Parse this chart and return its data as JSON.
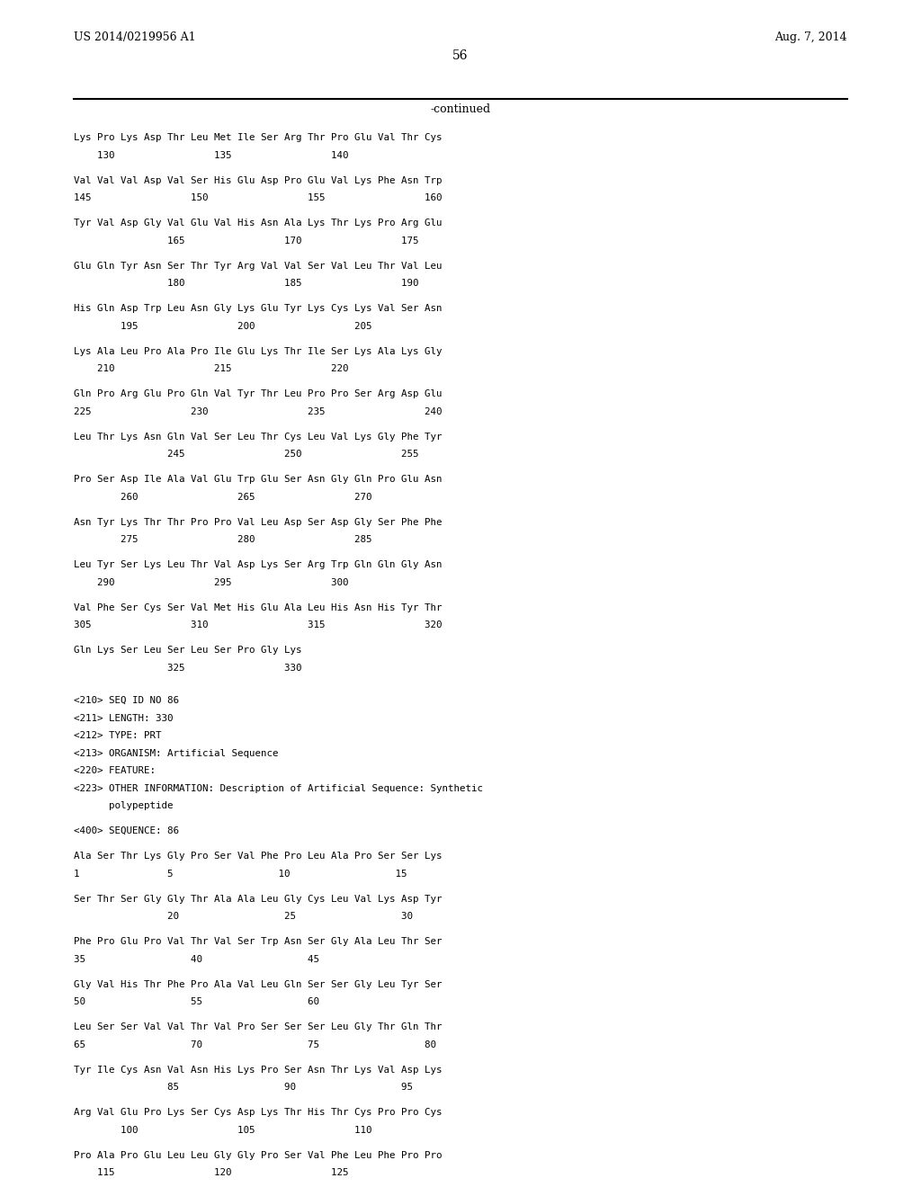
{
  "header_left": "US 2014/0219956 A1",
  "header_right": "Aug. 7, 2014",
  "page_number": "56",
  "continued_label": "-continued",
  "background_color": "#ffffff",
  "text_color": "#000000",
  "lines": [
    "Lys Pro Lys Asp Thr Leu Met Ile Ser Arg Thr Pro Glu Val Thr Cys",
    "    130                 135                 140",
    "",
    "Val Val Val Asp Val Ser His Glu Asp Pro Glu Val Lys Phe Asn Trp",
    "145                 150                 155                 160",
    "",
    "Tyr Val Asp Gly Val Glu Val His Asn Ala Lys Thr Lys Pro Arg Glu",
    "                165                 170                 175",
    "",
    "Glu Gln Tyr Asn Ser Thr Tyr Arg Val Val Ser Val Leu Thr Val Leu",
    "                180                 185                 190",
    "",
    "His Gln Asp Trp Leu Asn Gly Lys Glu Tyr Lys Cys Lys Val Ser Asn",
    "        195                 200                 205",
    "",
    "Lys Ala Leu Pro Ala Pro Ile Glu Lys Thr Ile Ser Lys Ala Lys Gly",
    "    210                 215                 220",
    "",
    "Gln Pro Arg Glu Pro Gln Val Tyr Thr Leu Pro Pro Ser Arg Asp Glu",
    "225                 230                 235                 240",
    "",
    "Leu Thr Lys Asn Gln Val Ser Leu Thr Cys Leu Val Lys Gly Phe Tyr",
    "                245                 250                 255",
    "",
    "Pro Ser Asp Ile Ala Val Glu Trp Glu Ser Asn Gly Gln Pro Glu Asn",
    "        260                 265                 270",
    "",
    "Asn Tyr Lys Thr Thr Pro Pro Val Leu Asp Ser Asp Gly Ser Phe Phe",
    "        275                 280                 285",
    "",
    "Leu Tyr Ser Lys Leu Thr Val Asp Lys Ser Arg Trp Gln Gln Gly Asn",
    "    290                 295                 300",
    "",
    "Val Phe Ser Cys Ser Val Met His Glu Ala Leu His Asn His Tyr Thr",
    "305                 310                 315                 320",
    "",
    "Gln Lys Ser Leu Ser Leu Ser Pro Gly Lys",
    "                325                 330",
    "",
    "",
    "<210> SEQ ID NO 86",
    "<211> LENGTH: 330",
    "<212> TYPE: PRT",
    "<213> ORGANISM: Artificial Sequence",
    "<220> FEATURE:",
    "<223> OTHER INFORMATION: Description of Artificial Sequence: Synthetic",
    "      polypeptide",
    "",
    "<400> SEQUENCE: 86",
    "",
    "Ala Ser Thr Lys Gly Pro Ser Val Phe Pro Leu Ala Pro Ser Ser Lys",
    "1               5                  10                  15",
    "",
    "Ser Thr Ser Gly Gly Thr Ala Ala Leu Gly Cys Leu Val Lys Asp Tyr",
    "                20                  25                  30",
    "",
    "Phe Pro Glu Pro Val Thr Val Ser Trp Asn Ser Gly Ala Leu Thr Ser",
    "35                  40                  45",
    "",
    "Gly Val His Thr Phe Pro Ala Val Leu Gln Ser Ser Gly Leu Tyr Ser",
    "50                  55                  60",
    "",
    "Leu Ser Ser Val Val Thr Val Pro Ser Ser Ser Leu Gly Thr Gln Thr",
    "65                  70                  75                  80",
    "",
    "Tyr Ile Cys Asn Val Asn His Lys Pro Ser Asn Thr Lys Val Asp Lys",
    "                85                  90                  95",
    "",
    "Arg Val Glu Pro Lys Ser Cys Asp Lys Thr His Thr Cys Pro Pro Cys",
    "        100                 105                 110",
    "",
    "Pro Ala Pro Glu Leu Leu Gly Gly Pro Ser Val Phe Leu Phe Pro Pro",
    "    115                 120                 125",
    "",
    "Lys Pro Lys Asp Thr Leu Met Ile Ser Arg Thr Pro Glu Val Thr Cys"
  ]
}
